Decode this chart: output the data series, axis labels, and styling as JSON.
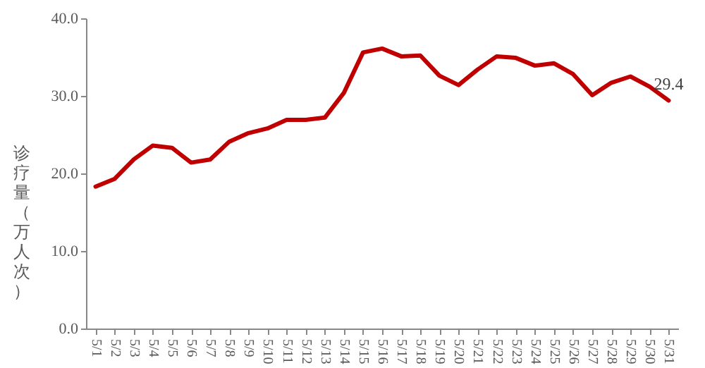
{
  "chart_data": {
    "type": "line",
    "ylabel": "诊疗量（万人次）",
    "categories": [
      "5/1",
      "5/2",
      "5/3",
      "5/4",
      "5/5",
      "5/6",
      "5/7",
      "5/8",
      "5/9",
      "5/10",
      "5/11",
      "5/12",
      "5/13",
      "5/14",
      "5/15",
      "5/16",
      "5/17",
      "5/18",
      "5/19",
      "5/20",
      "5/21",
      "5/22",
      "5/23",
      "5/24",
      "5/25",
      "5/26",
      "5/27",
      "5/28",
      "5/29",
      "5/30",
      "5/31"
    ],
    "series": [
      {
        "color": "#c00000",
        "values": [
          18.3,
          19.3,
          21.8,
          23.6,
          23.3,
          21.4,
          21.8,
          24.1,
          25.2,
          25.8,
          26.9,
          26.9,
          27.2,
          30.4,
          35.6,
          36.1,
          35.1,
          35.2,
          32.6,
          31.4,
          33.4,
          35.1,
          34.9,
          33.9,
          34.2,
          32.8,
          30.1,
          31.7,
          32.5,
          31.2,
          29.4
        ],
        "value_labels": [
          null,
          null,
          null,
          null,
          null,
          null,
          null,
          null,
          null,
          null,
          null,
          null,
          null,
          null,
          null,
          null,
          null,
          null,
          null,
          null,
          null,
          null,
          null,
          null,
          null,
          null,
          null,
          null,
          null,
          null,
          "29.4"
        ]
      }
    ],
    "ylim": [
      0,
      40
    ],
    "yticks": [
      {
        "value": 0,
        "label": "0.0"
      },
      {
        "value": 10,
        "label": "10.0"
      },
      {
        "value": 20,
        "label": "20.0"
      },
      {
        "value": 30,
        "label": "30.0"
      },
      {
        "value": 40,
        "label": "40.0"
      }
    ],
    "grid": false,
    "marker": "none",
    "line_style": "solid"
  }
}
